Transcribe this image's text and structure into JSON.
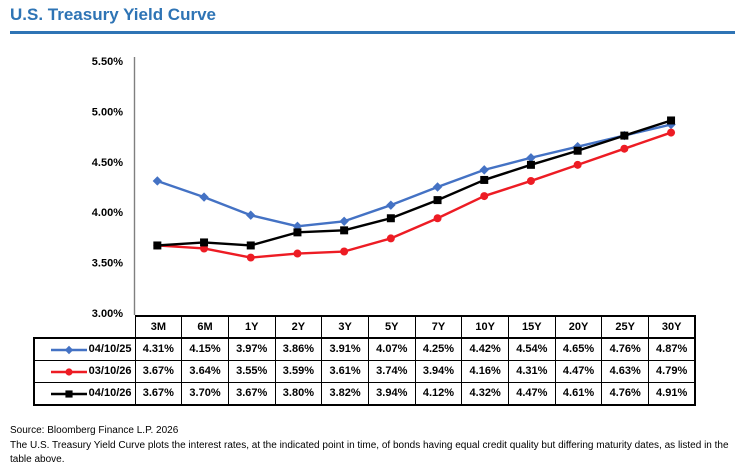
{
  "page": {
    "title": "U.S. Treasury Yield Curve",
    "accent_color": "#2E74B5"
  },
  "chart_data": {
    "type": "line",
    "title": "U.S. Treasury Yield Curve",
    "categories": [
      "3M",
      "6M",
      "1Y",
      "2Y",
      "3Y",
      "5Y",
      "7Y",
      "10Y",
      "15Y",
      "20Y",
      "25Y",
      "30Y"
    ],
    "series": [
      {
        "name": "04/10/25",
        "color": "#4472C4",
        "marker": "diamond",
        "values": [
          4.31,
          4.15,
          3.97,
          3.86,
          3.91,
          4.07,
          4.25,
          4.42,
          4.54,
          4.65,
          4.76,
          4.87
        ]
      },
      {
        "name": "03/10/26",
        "color": "#ED1C24",
        "marker": "circle",
        "values": [
          3.67,
          3.64,
          3.55,
          3.59,
          3.61,
          3.74,
          3.94,
          4.16,
          4.31,
          4.47,
          4.63,
          4.79
        ]
      },
      {
        "name": "04/10/26",
        "color": "#000000",
        "marker": "square",
        "values": [
          3.67,
          3.7,
          3.67,
          3.8,
          3.82,
          3.94,
          4.12,
          4.32,
          4.47,
          4.61,
          4.76,
          4.91
        ]
      }
    ],
    "y_axis": {
      "min": 3.0,
      "max": 5.5,
      "step": 0.5,
      "tick_labels": [
        "5.50%",
        "5.00%",
        "4.50%",
        "4.00%",
        "3.50%",
        "3.00%"
      ]
    },
    "axis_color": "#7F7F7F",
    "grid": false,
    "legend_position": "table-left",
    "value_format": "0.00%"
  },
  "footer": {
    "source": "Source: Bloomberg Finance L.P. 2026",
    "description": "The U.S. Treasury Yield Curve plots the interest rates, at the indicated point in time, of bonds having equal credit quality but differing maturity dates, as listed in the table above."
  }
}
